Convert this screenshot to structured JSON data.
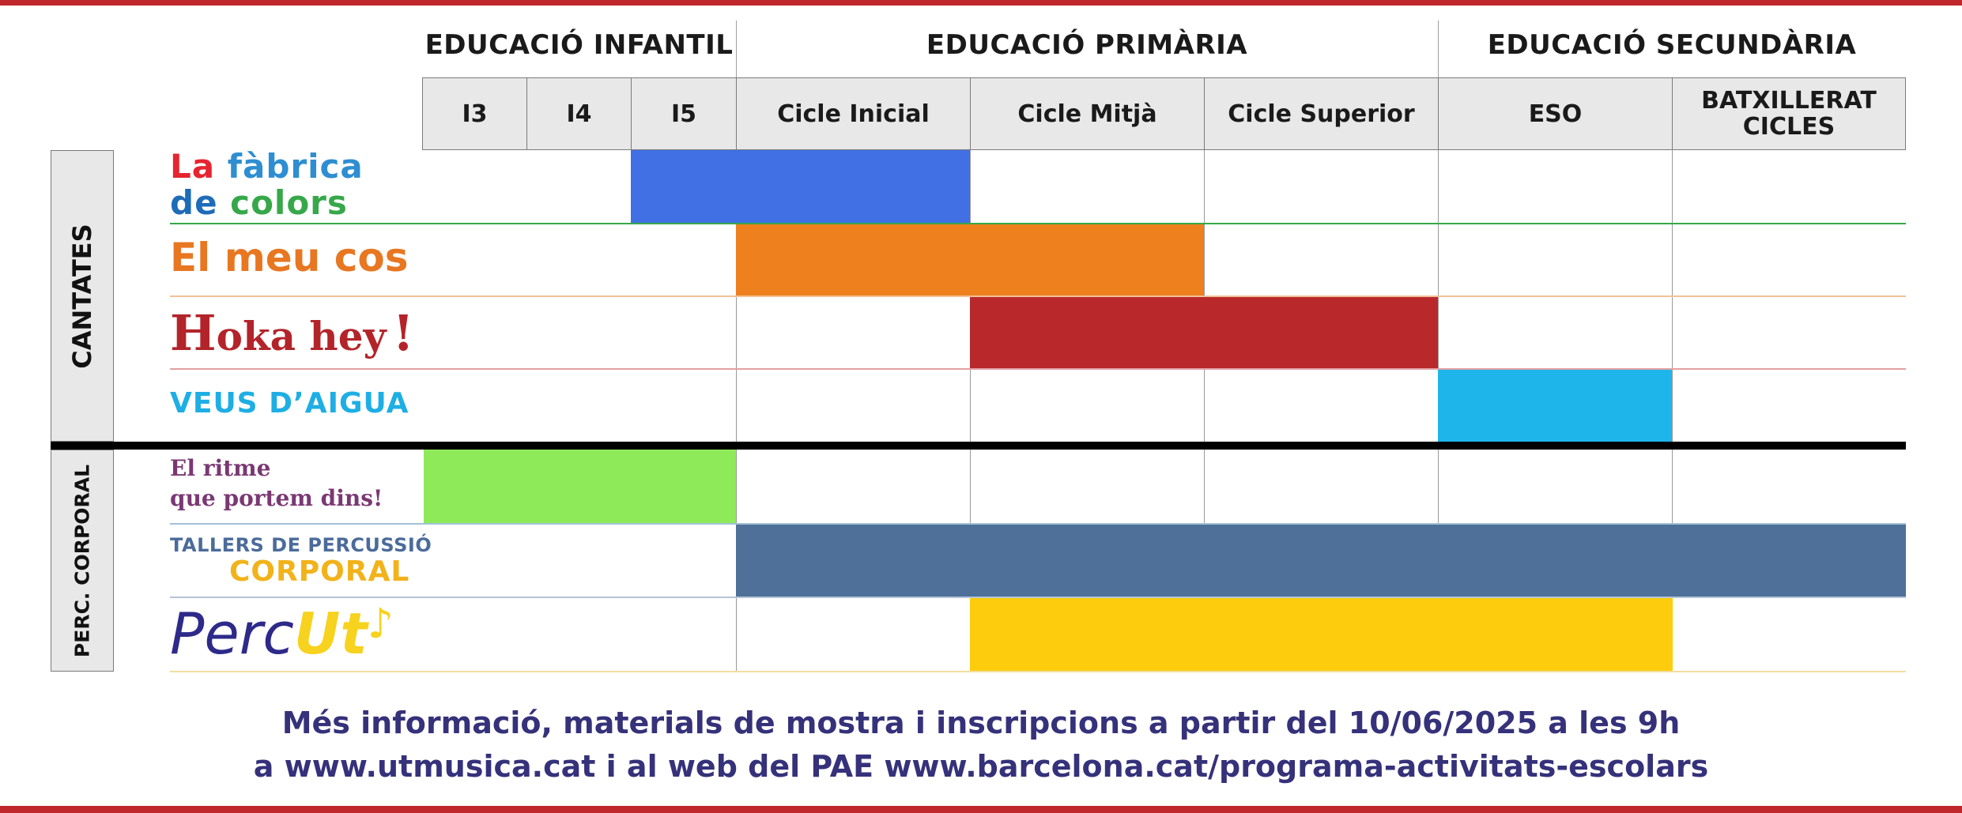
{
  "stages": [
    {
      "label": "EDUCACIÓ INFANTIL"
    },
    {
      "label": "EDUCACIÓ PRIMÀRIA"
    },
    {
      "label": "EDUCACIÓ SECUNDÀRIA"
    }
  ],
  "levels": [
    {
      "label": "I3"
    },
    {
      "label": "I4"
    },
    {
      "label": "I5"
    },
    {
      "label": "Cicle Inicial"
    },
    {
      "label": "Cicle Mitjà"
    },
    {
      "label": "Cicle Superior"
    },
    {
      "label": "ESO"
    },
    {
      "label": "BATXILLERAT\nCICLES"
    }
  ],
  "groups": [
    {
      "label": "CANTATES"
    },
    {
      "label": "PERC. CORPORAL"
    }
  ],
  "programs": [
    {
      "group": "CANTATES",
      "name_line1": [
        "La",
        " fàbrica"
      ],
      "name_line2": [
        "de",
        " colors"
      ],
      "name_colors": [
        "#e62430",
        "#2e8ed1",
        "#37a84a",
        "#f4a81d",
        "#8a4fa0",
        "#1e6bb8"
      ],
      "bar_color": "#4170e4",
      "from_level": "I5",
      "to_level": "Cicle Inicial"
    },
    {
      "group": "CANTATES",
      "name": "El meu cos",
      "bar_color": "#ee801e",
      "from_level": "Cicle Inicial",
      "to_level": "Cicle Mitjà"
    },
    {
      "group": "CANTATES",
      "name_initial": "H",
      "name_rest": "oka hey",
      "name_end": "!",
      "bar_color": "#b9292c",
      "from_level": "Cicle Mitjà",
      "to_level": "Cicle Superior"
    },
    {
      "group": "CANTATES",
      "name": "VEUS D’AIGUA",
      "bar_color": "#1eb6ea",
      "from_level": "ESO",
      "to_level": "ESO"
    },
    {
      "group": "PERC. CORPORAL",
      "name_line1": "El ritme",
      "name_line2": "que portem dins!",
      "bar_color": "#8fea5a",
      "from_level": "I3",
      "to_level": "I5"
    },
    {
      "group": "PERC. CORPORAL",
      "name_line1": "TALLERS DE PERCUSSIÓ",
      "name_line2": "CORPORAL",
      "bar_color": "#4e7099",
      "from_level": "Cicle Inicial",
      "to_level": "BATXILLERAT CICLES"
    },
    {
      "group": "PERC. CORPORAL",
      "name_part1": "Perc",
      "name_part2": "Ut",
      "name_mark": "♪",
      "bar_color": "#fdcd0d",
      "from_level": "Cicle Mitjà",
      "to_level": "ESO"
    }
  ],
  "footer": {
    "line1": "Més informació, materials de mostra i inscripcions a partir del 10/06/2025 a les 9h",
    "line2": "a www.utmusica.cat i al web del PAE www.barcelona.cat/programa-activitats-escolars"
  },
  "colors": {
    "frame": "#c0272d",
    "header_bg": "#e8e8e8",
    "info_text": "#35317a"
  }
}
